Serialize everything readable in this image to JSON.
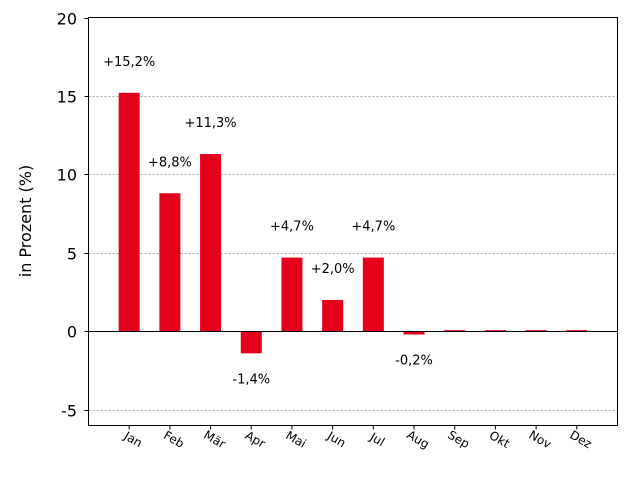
{
  "chart_data": {
    "type": "bar",
    "title": "",
    "xlabel": "",
    "ylabel": "in Prozent (%)",
    "ylim": [
      -6,
      20
    ],
    "yticks": [
      -5,
      0,
      5,
      10,
      15,
      20
    ],
    "ytick_labels": [
      "-5",
      "0",
      "5",
      "10",
      "15",
      "20"
    ],
    "grid": true,
    "categories": [
      "Jan",
      "Feb",
      "Mär",
      "Apr",
      "Mai",
      "Jun",
      "Jul",
      "Aug",
      "Sep",
      "Okt",
      "Nov",
      "Dez"
    ],
    "values": [
      15.2,
      8.8,
      11.3,
      -1.4,
      4.7,
      2.0,
      4.7,
      -0.2,
      0,
      0,
      0,
      0
    ],
    "data_labels": [
      "+15,2%",
      "+8,8%",
      "+11,3%",
      "-1,4%",
      "+4,7%",
      "+2,0%",
      "+4,7%",
      "-0,2%",
      "",
      "",
      "",
      ""
    ],
    "bar_color": "#e2001a"
  }
}
